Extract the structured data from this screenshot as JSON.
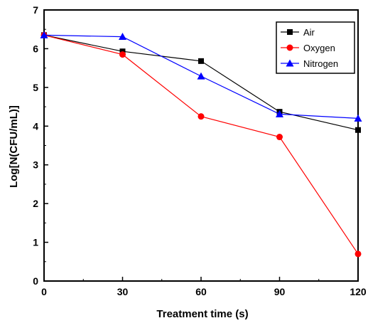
{
  "chart_data": {
    "type": "line",
    "xlabel": "Treatment time (s)",
    "ylabel": "Log[N(CFU/mL)]",
    "x": [
      0,
      30,
      60,
      90,
      120
    ],
    "xlim": [
      0,
      120
    ],
    "ylim": [
      0,
      7
    ],
    "xticks": [
      "0",
      "30",
      "60",
      "90",
      "120"
    ],
    "yticks": [
      "0",
      "1",
      "2",
      "3",
      "4",
      "5",
      "6",
      "7"
    ],
    "grid": false,
    "legend_position": "top-right",
    "series": [
      {
        "name": "Air",
        "color": "#000000",
        "marker": "square",
        "values": [
          6.35,
          5.93,
          5.68,
          4.37,
          3.9
        ]
      },
      {
        "name": "Oxygen",
        "color": "#ff0000",
        "marker": "circle",
        "values": [
          6.35,
          5.85,
          4.25,
          3.72,
          0.7
        ]
      },
      {
        "name": "Nitrogen",
        "color": "#0000ff",
        "marker": "triangle",
        "values": [
          6.35,
          6.31,
          5.29,
          4.31,
          4.2
        ]
      }
    ]
  }
}
